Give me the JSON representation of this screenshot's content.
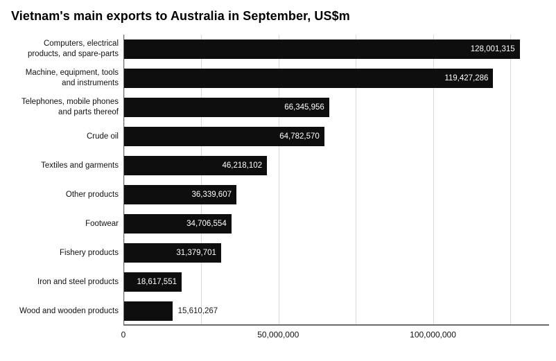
{
  "chart_data": {
    "type": "bar",
    "orientation": "horizontal",
    "title": "Vietnam's main exports to Australia in September, US$m",
    "categories": [
      "Computers, electrical products, and spare-parts",
      "Machine, equipment, tools and instruments",
      "Telephones, mobile phones and parts thereof",
      "Crude oil",
      "Textiles and garments",
      "Other products",
      "Footwear",
      "Fishery products",
      "Iron and steel products",
      "Wood and wooden products"
    ],
    "values": [
      128001315,
      119427286,
      66345956,
      64782570,
      46218102,
      36339607,
      34706554,
      31379701,
      18617551,
      15610267
    ],
    "value_labels": [
      "128,001,315",
      "119,427,286",
      "66,345,956",
      "64,782,570",
      "46,218,102",
      "36,339,607",
      "34,706,554",
      "31,379,701",
      "18,617,551",
      "15,610,267"
    ],
    "xlabel": "",
    "ylabel": "",
    "xlim": [
      0,
      137500000
    ],
    "x_ticks": [
      {
        "value": 0,
        "label": "0"
      },
      {
        "value": 50000000,
        "label": "50,000,000"
      },
      {
        "value": 100000000,
        "label": "100,000,000"
      }
    ],
    "gridline_values": [
      0,
      25000000,
      50000000,
      75000000,
      100000000,
      125000000
    ],
    "grid": true,
    "legend": false,
    "bar_color": "#0e0e0e",
    "background_color": "#ffffff"
  }
}
